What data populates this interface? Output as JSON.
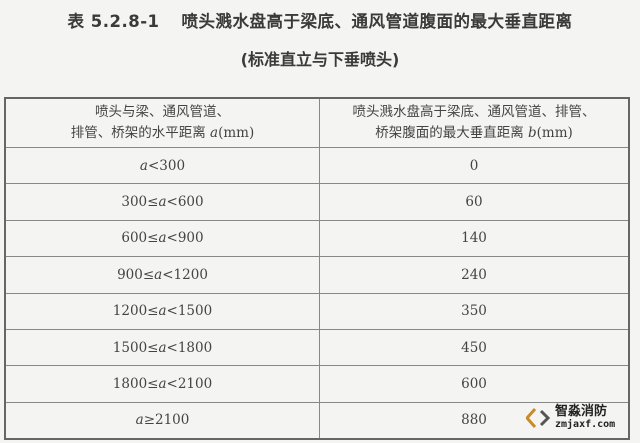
{
  "title": {
    "number": "表 5.2.8-1",
    "text": "喷头溅水盘高于梁底、通风管道腹面的最大垂直距离",
    "subtitle": "(标准直立与下垂喷头)"
  },
  "table": {
    "headers": [
      {
        "line1": "喷头与梁、通风管道、",
        "line2": "排管、桥架的水平距离 ",
        "var": "a",
        "unit": "(mm)"
      },
      {
        "line1": "喷头溅水盘高于梁底、通风管道、排管、",
        "line2": "桥架腹面的最大垂直距离 ",
        "var": "b",
        "unit": "(mm)"
      }
    ],
    "rows": [
      {
        "pre": "",
        "var": "a",
        "post": "<300",
        "b": "0"
      },
      {
        "pre": "300≤",
        "var": "a",
        "post": "<600",
        "b": "60"
      },
      {
        "pre": "600≤",
        "var": "a",
        "post": "<900",
        "b": "140"
      },
      {
        "pre": "900≤",
        "var": "a",
        "post": "<1200",
        "b": "240"
      },
      {
        "pre": "1200≤",
        "var": "a",
        "post": "<1500",
        "b": "350"
      },
      {
        "pre": "1500≤",
        "var": "a",
        "post": "<1800",
        "b": "450"
      },
      {
        "pre": "1800≤",
        "var": "a",
        "post": "<2100",
        "b": "600"
      },
      {
        "pre": "",
        "var": "a",
        "post": "≥2100",
        "b": "880"
      }
    ]
  },
  "watermark": {
    "name": "智淼消防",
    "domain": "zmjaxf.com",
    "icon": "diamond-logo-icon"
  }
}
